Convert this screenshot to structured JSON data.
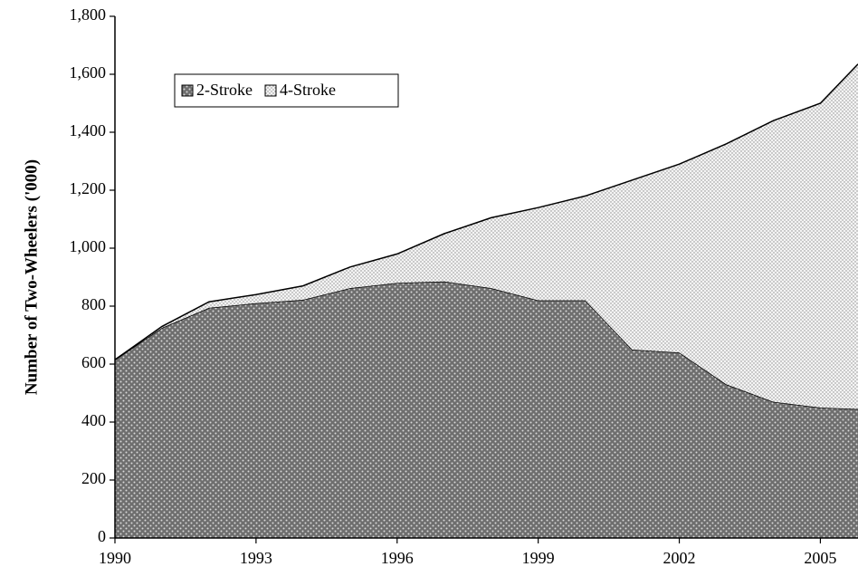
{
  "chart_data": {
    "type": "stacked_area",
    "y_label": "Number of Two-Wheelers ('000)",
    "x": [
      1990,
      1991,
      1992,
      1993,
      1994,
      1995,
      1996,
      1997,
      1998,
      1999,
      2000,
      2001,
      2002,
      2003,
      2004,
      2005,
      2005.8
    ],
    "series": [
      {
        "name": "2-Stroke",
        "color": "#7f7f7f",
        "values": [
          615,
          725,
          794,
          810,
          822,
          862,
          880,
          885,
          862,
          820,
          820,
          650,
          640,
          530,
          470,
          450,
          445
        ]
      },
      {
        "name": "4-Stroke",
        "color": "#e6e6e6",
        "values": [
          0,
          5,
          21,
          30,
          48,
          73,
          100,
          165,
          243,
          320,
          360,
          585,
          650,
          830,
          970,
          1050,
          1190
        ]
      }
    ],
    "xlim": [
      1990,
      2005.8
    ],
    "xticks": [
      1990,
      1993,
      1996,
      1999,
      2002,
      2005
    ],
    "ylim": [
      0,
      1800
    ],
    "yticks": [
      0,
      200,
      400,
      600,
      800,
      {
        "value": 1000,
        "label": "1,000"
      },
      {
        "value": 1200,
        "label": "1,200"
      },
      {
        "value": 1400,
        "label": "1,400"
      },
      {
        "value": 1600,
        "label": "1,600"
      },
      {
        "value": 1800,
        "label": "1,800"
      }
    ],
    "legend": "upper left"
  }
}
